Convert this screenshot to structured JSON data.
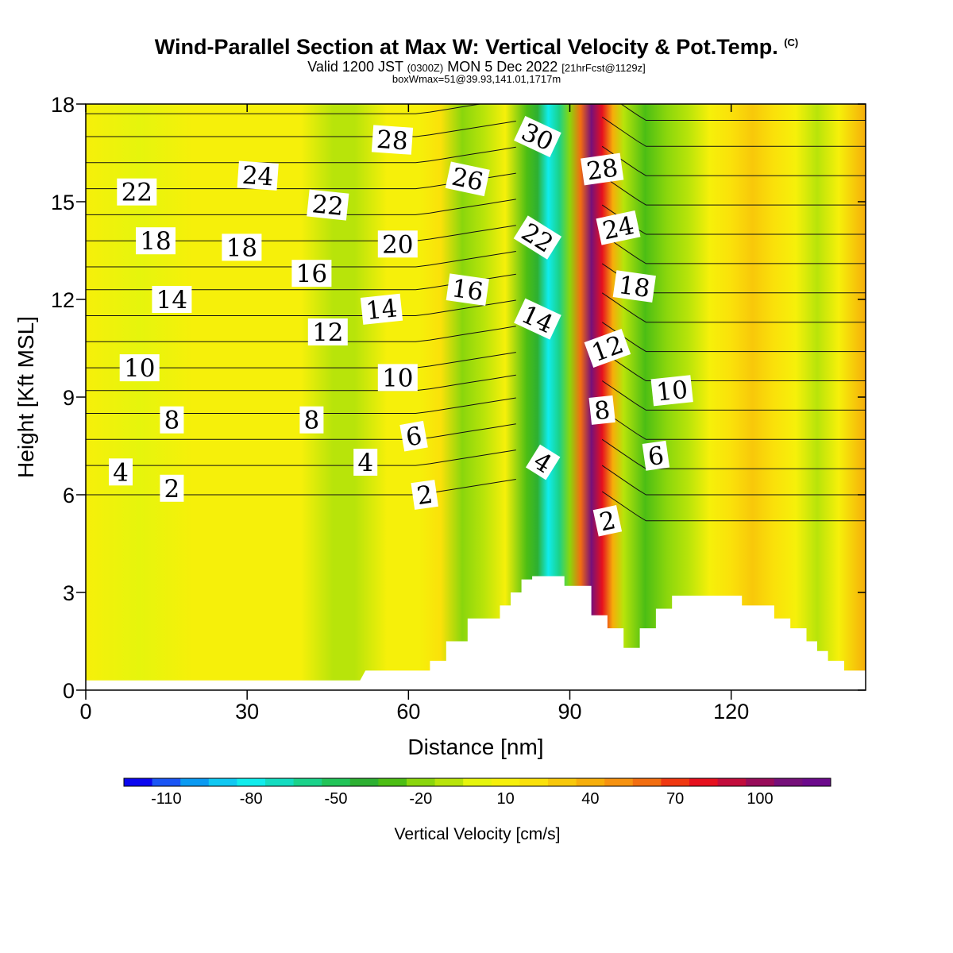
{
  "header": {
    "title_main": "Wind-Parallel Section at Max W: Vertical Velocity & Pot.Temp.",
    "title_mark": "(C)",
    "valid_prefix": "Valid 1200 JST",
    "valid_utc": "(0300Z)",
    "valid_date": "MON 5 Dec 2022",
    "valid_fcst": "[21hrFcst@1129z]",
    "box_info": "boxWmax=51@39.93,141.01,1717m"
  },
  "chart_data": {
    "type": "heatmap",
    "xlabel": "Distance [nm]",
    "ylabel": "Height [Kft MSL]",
    "xlim": [
      0,
      145
    ],
    "ylim": [
      0,
      18
    ],
    "x_ticks": [
      0,
      30,
      60,
      90,
      120
    ],
    "y_ticks": [
      0,
      3,
      6,
      9,
      12,
      15,
      18
    ],
    "colorbar": {
      "label": "Vertical Velocity [cm/s]",
      "tick_values": [
        -110,
        -80,
        -50,
        -20,
        10,
        40,
        70,
        100
      ],
      "colors": [
        "#0b06f0",
        "#1a55f5",
        "#0a9af2",
        "#10c8f2",
        "#10ecec",
        "#14dcc0",
        "#1ad28a",
        "#22c458",
        "#2db032",
        "#4cbe14",
        "#8ad60c",
        "#b8e40a",
        "#e6f50c",
        "#f6f00a",
        "#fae10a",
        "#f8c80a",
        "#f6ae0a",
        "#f69210",
        "#f26e10",
        "#f03810",
        "#e6101e",
        "#c20c3c",
        "#980c5a",
        "#76107a",
        "#6c0a8c"
      ]
    },
    "w_field_columns": [
      {
        "x": 0,
        "w": 8
      },
      {
        "x": 10,
        "w": 2
      },
      {
        "x": 20,
        "w": 8
      },
      {
        "x": 30,
        "w": 12
      },
      {
        "x": 40,
        "w": 5
      },
      {
        "x": 46,
        "w": -12
      },
      {
        "x": 50,
        "w": -6
      },
      {
        "x": 56,
        "w": 6
      },
      {
        "x": 62,
        "w": 14
      },
      {
        "x": 66,
        "w": 18
      },
      {
        "x": 70,
        "w": -18
      },
      {
        "x": 74,
        "w": -8
      },
      {
        "x": 78,
        "w": 6
      },
      {
        "x": 82,
        "w": -28
      },
      {
        "x": 84,
        "w": -45
      },
      {
        "x": 86,
        "w": -80
      },
      {
        "x": 88,
        "w": -62
      },
      {
        "x": 90,
        "w": -20
      },
      {
        "x": 92,
        "w": 60
      },
      {
        "x": 94,
        "w": 112
      },
      {
        "x": 96,
        "w": 80
      },
      {
        "x": 98,
        "w": 40
      },
      {
        "x": 100,
        "w": -10
      },
      {
        "x": 104,
        "w": -30
      },
      {
        "x": 108,
        "w": -22
      },
      {
        "x": 112,
        "w": -10
      },
      {
        "x": 116,
        "w": 12
      },
      {
        "x": 120,
        "w": 22
      },
      {
        "x": 124,
        "w": 28
      },
      {
        "x": 128,
        "w": 16
      },
      {
        "x": 132,
        "w": 6
      },
      {
        "x": 136,
        "w": -10
      },
      {
        "x": 140,
        "w": 6
      },
      {
        "x": 145,
        "w": 38
      }
    ],
    "terrain_kft": [
      {
        "x": 0,
        "h": 0.3
      },
      {
        "x": 51,
        "h": 0.3
      },
      {
        "x": 52,
        "h": 0.6
      },
      {
        "x": 64,
        "h": 0.6
      },
      {
        "x": 64,
        "h": 0.9
      },
      {
        "x": 67,
        "h": 0.9
      },
      {
        "x": 67,
        "h": 1.5
      },
      {
        "x": 71,
        "h": 1.5
      },
      {
        "x": 71,
        "h": 2.2
      },
      {
        "x": 77,
        "h": 2.2
      },
      {
        "x": 77,
        "h": 2.6
      },
      {
        "x": 79,
        "h": 2.6
      },
      {
        "x": 79,
        "h": 3.0
      },
      {
        "x": 81,
        "h": 3.0
      },
      {
        "x": 81,
        "h": 3.4
      },
      {
        "x": 83,
        "h": 3.4
      },
      {
        "x": 83,
        "h": 3.5
      },
      {
        "x": 89,
        "h": 3.5
      },
      {
        "x": 89,
        "h": 3.2
      },
      {
        "x": 94,
        "h": 3.2
      },
      {
        "x": 94,
        "h": 2.3
      },
      {
        "x": 97,
        "h": 2.3
      },
      {
        "x": 97,
        "h": 1.9
      },
      {
        "x": 100,
        "h": 1.9
      },
      {
        "x": 100,
        "h": 1.3
      },
      {
        "x": 103,
        "h": 1.3
      },
      {
        "x": 103,
        "h": 1.9
      },
      {
        "x": 106,
        "h": 1.9
      },
      {
        "x": 106,
        "h": 2.5
      },
      {
        "x": 109,
        "h": 2.5
      },
      {
        "x": 109,
        "h": 2.9
      },
      {
        "x": 122,
        "h": 2.9
      },
      {
        "x": 122,
        "h": 2.6
      },
      {
        "x": 128,
        "h": 2.6
      },
      {
        "x": 128,
        "h": 2.2
      },
      {
        "x": 131,
        "h": 2.2
      },
      {
        "x": 131,
        "h": 1.9
      },
      {
        "x": 134,
        "h": 1.9
      },
      {
        "x": 134,
        "h": 1.5
      },
      {
        "x": 136,
        "h": 1.5
      },
      {
        "x": 136,
        "h": 1.2
      },
      {
        "x": 138,
        "h": 1.2
      },
      {
        "x": 138,
        "h": 0.9
      },
      {
        "x": 141,
        "h": 0.9
      },
      {
        "x": 141,
        "h": 0.6
      },
      {
        "x": 145,
        "h": 0.6
      }
    ],
    "theta_contours": {
      "series": [
        {
          "name": "isentropes-left",
          "x": [
            0,
            30,
            50,
            60,
            70,
            80
          ],
          "base_levels_kft": [
            6.0,
            6.9,
            7.7,
            8.5,
            9.2,
            9.9,
            10.7,
            11.5,
            12.3,
            13.0,
            13.8,
            14.6,
            15.4,
            16.2,
            17.0,
            17.7
          ]
        },
        {
          "name": "isentropes-right",
          "x": [
            96,
            110,
            130,
            145
          ],
          "base_levels_kft": [
            5.2,
            6.0,
            6.8,
            7.7,
            8.6,
            9.5,
            10.4,
            11.3,
            12.2,
            13.1,
            14.0,
            14.9,
            15.8,
            16.7,
            17.5
          ]
        }
      ]
    },
    "contour_labels": [
      {
        "text": "22",
        "x": 9.5,
        "y": 15.3,
        "rot": 0
      },
      {
        "text": "24",
        "x": 32,
        "y": 15.8,
        "rot": 4
      },
      {
        "text": "28",
        "x": 57,
        "y": 16.9,
        "rot": 4
      },
      {
        "text": "30",
        "x": 84,
        "y": 17.0,
        "rot": 25
      },
      {
        "text": "26",
        "x": 71,
        "y": 15.7,
        "rot": 12
      },
      {
        "text": "28",
        "x": 96,
        "y": 16.0,
        "rot": -8
      },
      {
        "text": "22",
        "x": 45,
        "y": 14.9,
        "rot": 6
      },
      {
        "text": "18",
        "x": 13,
        "y": 13.8,
        "rot": 0
      },
      {
        "text": "18",
        "x": 29,
        "y": 13.6,
        "rot": 0
      },
      {
        "text": "20",
        "x": 58,
        "y": 13.7,
        "rot": 0
      },
      {
        "text": "22",
        "x": 84,
        "y": 13.9,
        "rot": 32
      },
      {
        "text": "24",
        "x": 99,
        "y": 14.2,
        "rot": -12
      },
      {
        "text": "16",
        "x": 42,
        "y": 12.8,
        "rot": 0
      },
      {
        "text": "14",
        "x": 16,
        "y": 12.0,
        "rot": 0
      },
      {
        "text": "16",
        "x": 71,
        "y": 12.3,
        "rot": 8
      },
      {
        "text": "18",
        "x": 102,
        "y": 12.4,
        "rot": 8
      },
      {
        "text": "14",
        "x": 55,
        "y": 11.7,
        "rot": -6
      },
      {
        "text": "14",
        "x": 84,
        "y": 11.4,
        "rot": 25
      },
      {
        "text": "12",
        "x": 45,
        "y": 11.0,
        "rot": 0
      },
      {
        "text": "12",
        "x": 97,
        "y": 10.5,
        "rot": -20
      },
      {
        "text": "10",
        "x": 10,
        "y": 9.9,
        "rot": 0
      },
      {
        "text": "10",
        "x": 58,
        "y": 9.6,
        "rot": 0
      },
      {
        "text": "10",
        "x": 109,
        "y": 9.2,
        "rot": -6
      },
      {
        "text": "8",
        "x": 16,
        "y": 8.3,
        "rot": 0
      },
      {
        "text": "8",
        "x": 42,
        "y": 8.3,
        "rot": 0
      },
      {
        "text": "8",
        "x": 96,
        "y": 8.6,
        "rot": -6
      },
      {
        "text": "6",
        "x": 61,
        "y": 7.8,
        "rot": -10
      },
      {
        "text": "6",
        "x": 106,
        "y": 7.2,
        "rot": -8
      },
      {
        "text": "4",
        "x": 6.5,
        "y": 6.7,
        "rot": 0
      },
      {
        "text": "4",
        "x": 52,
        "y": 7.0,
        "rot": 0
      },
      {
        "text": "4",
        "x": 85,
        "y": 7.0,
        "rot": 32
      },
      {
        "text": "2",
        "x": 16,
        "y": 6.2,
        "rot": 0
      },
      {
        "text": "2",
        "x": 63,
        "y": 6.0,
        "rot": -8
      },
      {
        "text": "2",
        "x": 97,
        "y": 5.2,
        "rot": -12
      }
    ]
  }
}
